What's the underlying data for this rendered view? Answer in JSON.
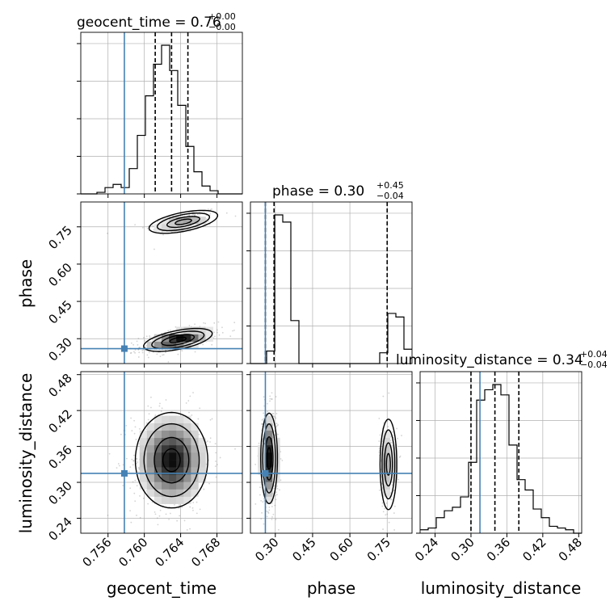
{
  "chart_data": {
    "type": "corner",
    "parameters": [
      "geocent_time",
      "phase",
      "luminosity_distance"
    ],
    "truths": {
      "geocent_time": 0.7578,
      "phase": 0.26,
      "luminosity_distance": 0.315
    },
    "quantile_lines": {
      "geocent_time": [
        0.7612,
        0.763,
        0.7648
      ],
      "phase": [
        0.26,
        0.295,
        0.75
      ],
      "luminosity_distance": [
        0.3,
        0.34,
        0.38
      ]
    },
    "titles": {
      "geocent_time": {
        "name": "geocent_time",
        "value": "0.76",
        "plus": "+0.00",
        "minus": "−0.00"
      },
      "phase": {
        "name": "phase",
        "value": "0.30",
        "plus": "+0.45",
        "minus": "−0.04"
      },
      "luminosity_distance": {
        "name": "luminosity_distance",
        "value": "0.34",
        "plus": "+0.04",
        "minus": "−0.04"
      }
    },
    "axis_labels": {
      "x": [
        "geocent_time",
        "phase",
        "luminosity_distance"
      ],
      "y": [
        "phase",
        "luminosity_distance"
      ]
    },
    "ranges": {
      "geocent_time": [
        0.753,
        0.7708
      ],
      "phase": [
        0.2,
        0.85
      ],
      "luminosity_distance": [
        0.215,
        0.485
      ]
    },
    "ticks": {
      "geocent_time": {
        "values": [
          0.756,
          0.76,
          0.764,
          0.768
        ],
        "labels": [
          "0.756",
          "0.760",
          "0.764",
          "0.768"
        ]
      },
      "phase": {
        "values": [
          0.3,
          0.45,
          0.6,
          0.75
        ],
        "labels": [
          "0.30",
          "0.45",
          "0.60",
          "0.75"
        ]
      },
      "luminosity_distance": {
        "values": [
          0.24,
          0.3,
          0.36,
          0.42,
          0.48
        ],
        "labels": [
          "0.24",
          "0.30",
          "0.36",
          "0.42",
          "0.48"
        ]
      }
    },
    "histograms": {
      "geocent_time": {
        "edges_start": 0.753,
        "bin_width": 0.00089,
        "counts": [
          0,
          0,
          1,
          4,
          6,
          4,
          16,
          37,
          62,
          82,
          94,
          78,
          56,
          30,
          14,
          5,
          2,
          0,
          0,
          0
        ]
      },
      "phase": {
        "edges_start": 0.2,
        "bin_width": 0.0325,
        "counts": [
          0,
          0,
          7,
          83,
          79,
          24,
          0,
          0,
          0,
          0,
          0,
          0,
          0,
          0,
          0,
          0,
          6,
          28,
          26,
          8
        ]
      },
      "luminosity_distance": {
        "edges_start": 0.215,
        "bin_width": 0.0135,
        "counts": [
          2,
          3,
          9,
          13,
          15,
          21,
          41,
          77,
          83,
          86,
          80,
          51,
          31,
          25,
          14,
          9,
          4,
          3,
          2,
          0
        ]
      }
    },
    "joint_modes": {
      "geocent_time_phase": [
        {
          "x": 0.7643,
          "y": 0.77,
          "sx": 0.0018,
          "sy": 0.022,
          "rho": 0.55,
          "weight": 0.28
        },
        {
          "x": 0.7637,
          "y": 0.295,
          "sx": 0.0018,
          "sy": 0.022,
          "rho": 0.55,
          "weight": 0.72
        }
      ],
      "geocent_time_luminosity_distance": [
        {
          "x": 0.763,
          "y": 0.337,
          "sx": 0.0019,
          "sy": 0.038,
          "rho": 0.0,
          "weight": 1.0
        }
      ],
      "phase_luminosity_distance": [
        {
          "x": 0.275,
          "y": 0.34,
          "sx": 0.016,
          "sy": 0.036,
          "rho": 0.0,
          "weight": 0.72
        },
        {
          "x": 0.755,
          "y": 0.33,
          "sx": 0.016,
          "sy": 0.036,
          "rho": 0.0,
          "weight": 0.28
        }
      ]
    },
    "colors": {
      "truth": "#4682b4",
      "contour": "#000000",
      "scatter": "#808080",
      "grid": "#b0b0b0"
    },
    "grid": true
  }
}
